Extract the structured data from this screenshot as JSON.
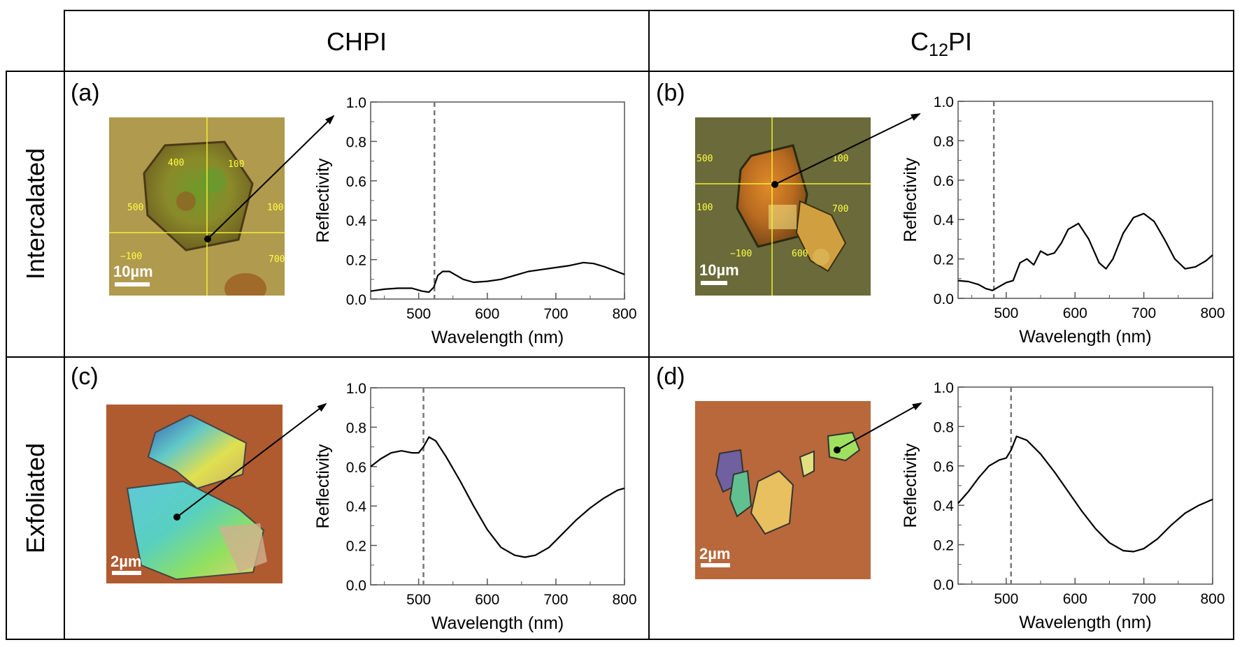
{
  "columns": [
    {
      "name": "CHPI"
    },
    {
      "name_main": "C",
      "name_sub": "12",
      "name_tail": "PI"
    }
  ],
  "rows": [
    "Intercalated",
    "Exfoliated"
  ],
  "panels": [
    {
      "label": "(a)",
      "scale": "10µm",
      "reticle": [
        "400",
        "100",
        "500",
        "100",
        "−100",
        "700"
      ]
    },
    {
      "label": "(b)",
      "scale": "10µm",
      "reticle": [
        "500",
        "100",
        "100",
        "700",
        "−100",
        "600"
      ]
    },
    {
      "label": "(c)",
      "scale": "2µm"
    },
    {
      "label": "(d)",
      "scale": "2µm"
    }
  ],
  "colors": {
    "line": "#000000",
    "marker": "#777777"
  },
  "chart_data": [
    {
      "type": "line",
      "panel": "a",
      "xlabel": "Wavelength (nm)",
      "ylabel": "Reflectivity",
      "xlim": [
        430,
        800
      ],
      "ylim": [
        0,
        1.0
      ],
      "xticks": [
        500,
        600,
        700,
        800
      ],
      "yticks": [
        0.0,
        0.2,
        0.4,
        0.6,
        0.8,
        1.0
      ],
      "marker_x": 523,
      "x": [
        430,
        450,
        470,
        490,
        505,
        515,
        522,
        528,
        535,
        545,
        555,
        565,
        580,
        600,
        620,
        640,
        660,
        680,
        700,
        720,
        740,
        755,
        770,
        785,
        800
      ],
      "y": [
        0.04,
        0.05,
        0.055,
        0.055,
        0.04,
        0.035,
        0.06,
        0.12,
        0.14,
        0.14,
        0.12,
        0.1,
        0.085,
        0.09,
        0.1,
        0.12,
        0.14,
        0.15,
        0.16,
        0.17,
        0.185,
        0.18,
        0.165,
        0.145,
        0.125
      ]
    },
    {
      "type": "line",
      "panel": "b",
      "xlabel": "Wavelength (nm)",
      "ylabel": "Reflectivity",
      "xlim": [
        430,
        800
      ],
      "ylim": [
        0,
        1.0
      ],
      "xticks": [
        500,
        600,
        700,
        800
      ],
      "yticks": [
        0.0,
        0.2,
        0.4,
        0.6,
        0.8,
        1.0
      ],
      "marker_x": 482,
      "x": [
        430,
        445,
        460,
        470,
        480,
        490,
        500,
        510,
        520,
        530,
        540,
        550,
        560,
        570,
        580,
        590,
        605,
        620,
        635,
        645,
        655,
        670,
        685,
        700,
        715,
        730,
        745,
        760,
        775,
        790,
        800
      ],
      "y": [
        0.09,
        0.085,
        0.07,
        0.05,
        0.04,
        0.06,
        0.08,
        0.09,
        0.18,
        0.2,
        0.17,
        0.24,
        0.22,
        0.23,
        0.28,
        0.35,
        0.38,
        0.3,
        0.18,
        0.15,
        0.2,
        0.33,
        0.41,
        0.43,
        0.39,
        0.3,
        0.2,
        0.15,
        0.16,
        0.19,
        0.22
      ]
    },
    {
      "type": "line",
      "panel": "c",
      "xlabel": "Wavelength (nm)",
      "ylabel": "Reflectivity",
      "xlim": [
        430,
        800
      ],
      "ylim": [
        0,
        1.0
      ],
      "xticks": [
        500,
        600,
        700,
        800
      ],
      "yticks": [
        0.0,
        0.2,
        0.4,
        0.6,
        0.8,
        1.0
      ],
      "marker_x": 507,
      "x": [
        430,
        445,
        460,
        475,
        490,
        500,
        507,
        515,
        525,
        540,
        560,
        580,
        600,
        620,
        640,
        655,
        670,
        690,
        710,
        730,
        750,
        770,
        790,
        800
      ],
      "y": [
        0.6,
        0.64,
        0.67,
        0.68,
        0.67,
        0.67,
        0.7,
        0.75,
        0.73,
        0.65,
        0.53,
        0.4,
        0.28,
        0.19,
        0.15,
        0.14,
        0.15,
        0.19,
        0.26,
        0.33,
        0.39,
        0.44,
        0.48,
        0.49
      ]
    },
    {
      "type": "line",
      "panel": "d",
      "xlabel": "Wavelength (nm)",
      "ylabel": "Reflectivity",
      "xlim": [
        430,
        800
      ],
      "ylim": [
        0,
        1.0
      ],
      "xticks": [
        500,
        600,
        700,
        800
      ],
      "yticks": [
        0.0,
        0.2,
        0.4,
        0.6,
        0.8,
        1.0
      ],
      "marker_x": 507,
      "x": [
        430,
        445,
        460,
        475,
        490,
        500,
        507,
        515,
        530,
        550,
        570,
        590,
        610,
        630,
        650,
        670,
        685,
        700,
        720,
        740,
        760,
        780,
        800
      ],
      "y": [
        0.41,
        0.47,
        0.54,
        0.6,
        0.63,
        0.64,
        0.68,
        0.75,
        0.73,
        0.66,
        0.57,
        0.47,
        0.37,
        0.28,
        0.21,
        0.17,
        0.165,
        0.18,
        0.23,
        0.3,
        0.36,
        0.4,
        0.43
      ]
    }
  ]
}
